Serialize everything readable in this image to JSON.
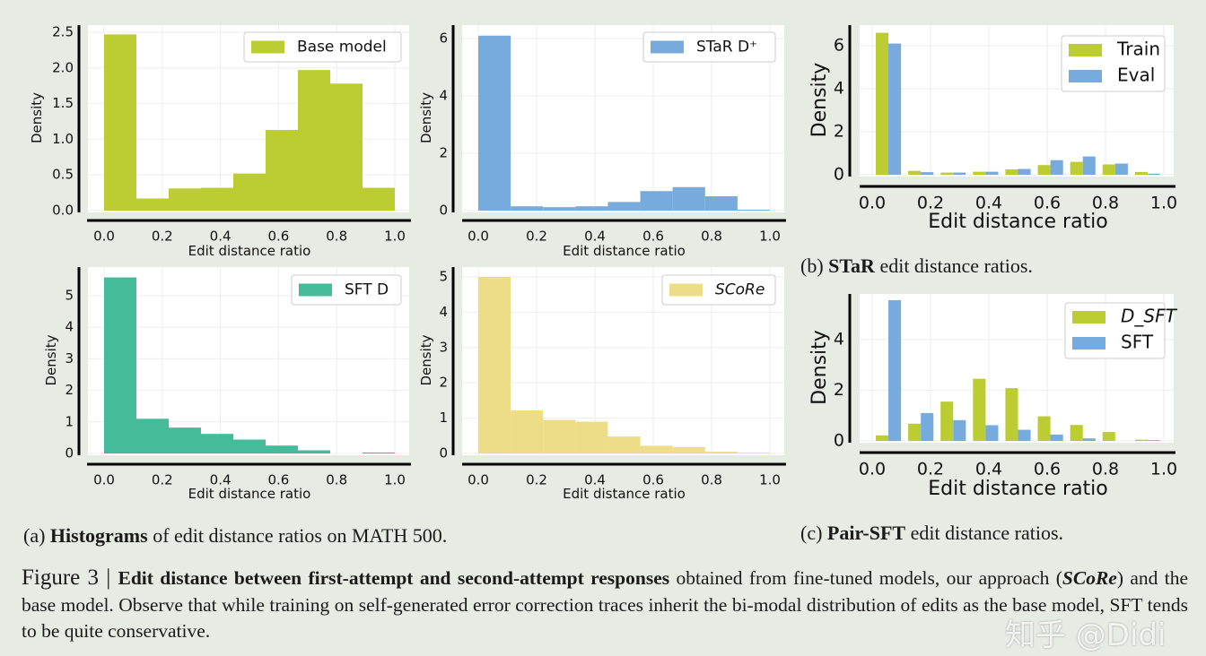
{
  "chart_data": [
    {
      "id": "a1",
      "type": "bar",
      "histogram": true,
      "bin_range": [
        0,
        1
      ],
      "xlabel": "Edit distance ratio",
      "ylabel": "Density",
      "xlim": [
        0,
        1
      ],
      "ylim": [
        0,
        2.5
      ],
      "xticks": [
        0,
        0.2,
        0.4,
        0.6,
        0.8,
        1.0
      ],
      "xtick_labels": [
        "0.0",
        "0.2",
        "0.4",
        "0.6",
        "0.8",
        "1.0"
      ],
      "yticks": [
        0,
        0.5,
        1,
        1.5,
        2,
        2.5
      ],
      "ytick_labels": [
        "0.0",
        "0.5",
        "1.0",
        "1.5",
        "2.0",
        "2.5"
      ],
      "grid": true,
      "legend": "top-right",
      "series": [
        {
          "name": "Base model",
          "color": "#bccc33",
          "values": [
            2.47,
            0.17,
            0.31,
            0.32,
            0.52,
            1.13,
            1.97,
            1.78,
            0.32
          ]
        }
      ]
    },
    {
      "id": "a2",
      "type": "bar",
      "histogram": true,
      "bin_range": [
        0,
        1
      ],
      "xlabel": "Edit distance ratio",
      "ylabel": "Density",
      "xlim": [
        0,
        1
      ],
      "ylim": [
        0,
        6.3
      ],
      "xticks": [
        0,
        0.2,
        0.4,
        0.6,
        0.8,
        1.0
      ],
      "xtick_labels": [
        "0.0",
        "0.2",
        "0.4",
        "0.6",
        "0.8",
        "1.0"
      ],
      "yticks": [
        0,
        2,
        4,
        6
      ],
      "ytick_labels": [
        "0",
        "2",
        "4",
        "6"
      ],
      "grid": true,
      "legend": "top-right",
      "series": [
        {
          "name": "STaR D⁺",
          "color": "#77aadd",
          "values": [
            6.1,
            0.15,
            0.12,
            0.15,
            0.3,
            0.68,
            0.82,
            0.5,
            0.03
          ]
        }
      ]
    },
    {
      "id": "a3",
      "type": "bar",
      "histogram": true,
      "bin_range": [
        0,
        1
      ],
      "xlabel": "Edit distance ratio",
      "ylabel": "Density",
      "xlim": [
        0,
        1
      ],
      "ylim": [
        0,
        5.8
      ],
      "xticks": [
        0,
        0.2,
        0.4,
        0.6,
        0.8,
        1.0
      ],
      "xtick_labels": [
        "0.0",
        "0.2",
        "0.4",
        "0.6",
        "0.8",
        "1.0"
      ],
      "yticks": [
        0,
        1,
        2,
        3,
        4,
        5
      ],
      "ytick_labels": [
        "0",
        "1",
        "2",
        "3",
        "4",
        "5"
      ],
      "grid": true,
      "legend": "top-right",
      "series": [
        {
          "name": "SFT D",
          "color": "#44bb99",
          "values": [
            5.58,
            1.1,
            0.82,
            0.62,
            0.44,
            0.25,
            0.1,
            0.0,
            0.03
          ]
        }
      ]
    },
    {
      "id": "a4",
      "type": "bar",
      "histogram": true,
      "bin_range": [
        0,
        1
      ],
      "xlabel": "Edit distance ratio",
      "ylabel": "Density",
      "xlim": [
        0,
        1
      ],
      "ylim": [
        0,
        5.1
      ],
      "xticks": [
        0,
        0.2,
        0.4,
        0.6,
        0.8,
        1.0
      ],
      "xtick_labels": [
        "0.0",
        "0.2",
        "0.4",
        "0.6",
        "0.8",
        "1.0"
      ],
      "yticks": [
        0,
        1,
        2,
        3,
        4,
        5
      ],
      "ytick_labels": [
        "0",
        "1",
        "2",
        "3",
        "4",
        "5"
      ],
      "grid": true,
      "legend": "top-right",
      "series": [
        {
          "name": "SCoRe",
          "color": "#eedd88",
          "values": [
            5.0,
            1.22,
            0.95,
            0.9,
            0.48,
            0.22,
            0.18,
            0.05,
            0.02
          ]
        }
      ]
    },
    {
      "id": "b",
      "type": "bar",
      "histogram": true,
      "grouped": true,
      "bin_range": [
        0,
        1
      ],
      "xlabel": "Edit distance ratio",
      "ylabel": "Density",
      "xlim": [
        0,
        1
      ],
      "ylim": [
        0,
        6.8
      ],
      "xticks": [
        0,
        0.2,
        0.4,
        0.6,
        0.8,
        1.0
      ],
      "xtick_labels": [
        "0.0",
        "0.2",
        "0.4",
        "0.6",
        "0.8",
        "1.0"
      ],
      "yticks": [
        0,
        2,
        4,
        6
      ],
      "ytick_labels": [
        "0",
        "2",
        "4",
        "6"
      ],
      "grid": true,
      "legend": "top-right",
      "series": [
        {
          "name": "Train",
          "color": "#bccc33",
          "values": [
            6.6,
            0.18,
            0.1,
            0.14,
            0.25,
            0.45,
            0.6,
            0.48,
            0.13
          ]
        },
        {
          "name": "Eval",
          "color": "#77aadd",
          "values": [
            6.1,
            0.12,
            0.1,
            0.14,
            0.27,
            0.68,
            0.85,
            0.52,
            0.05
          ]
        }
      ]
    },
    {
      "id": "c",
      "type": "bar",
      "histogram": true,
      "grouped": true,
      "bin_range": [
        0,
        1
      ],
      "xlabel": "Edit distance ratio",
      "ylabel": "Density",
      "xlim": [
        0,
        1
      ],
      "ylim": [
        0,
        5.7
      ],
      "xticks": [
        0,
        0.2,
        0.4,
        0.6,
        0.8,
        1.0
      ],
      "xtick_labels": [
        "0.0",
        "0.2",
        "0.4",
        "0.6",
        "0.8",
        "1.0"
      ],
      "yticks": [
        0,
        2,
        4
      ],
      "ytick_labels": [
        "0",
        "2",
        "4"
      ],
      "grid": true,
      "legend": "top-right",
      "series": [
        {
          "name": "D_SFT",
          "color": "#bccc33",
          "values": [
            0.22,
            0.68,
            1.55,
            2.45,
            2.08,
            0.97,
            0.63,
            0.35,
            0.05
          ]
        },
        {
          "name": "SFT",
          "color": "#77aadd",
          "values": [
            5.55,
            1.1,
            0.82,
            0.62,
            0.44,
            0.25,
            0.1,
            0.0,
            0.03
          ]
        }
      ]
    }
  ],
  "subcaptions": {
    "a": {
      "label": "(a)",
      "bold": "Histograms",
      "rest": " of edit distance ratios on MATH 500."
    },
    "b": {
      "label": "(b)",
      "bold": "STaR",
      "rest": " edit distance ratios."
    },
    "c": {
      "label": "(c)",
      "bold": "Pair-SFT",
      "rest": " edit distance ratios."
    }
  },
  "caption": {
    "figure": "Figure 3 | ",
    "bold": "Edit distance between first-attempt and second-attempt responses",
    "part1": " obtained from fine-tuned models, our approach (",
    "method": "SCoRe",
    "part2": ") and the base model. Observe that while training on self-generated error correction traces inherit the bi-modal distribution of edits as the base model, SFT tends to be quite conservative."
  },
  "watermark": "知乎 @Didi",
  "colors": {
    "background": "#e6ebe3",
    "green": "#bccc33",
    "blue": "#77aadd",
    "teal": "#44bb99",
    "yellow": "#eedd88"
  }
}
